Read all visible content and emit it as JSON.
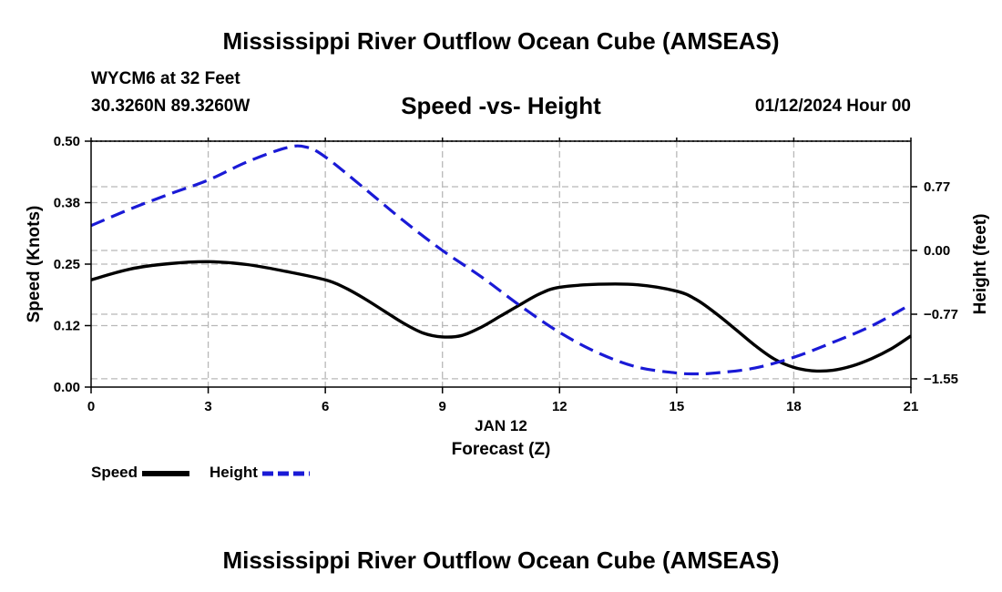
{
  "header": {
    "title": "Mississippi River Outflow Ocean Cube (AMSEAS)",
    "station": "WYCM6 at 32 Feet",
    "coords": "30.3260N  89.3260W",
    "subtitle": "Speed -vs- Height",
    "datetime": "01/12/2024 Hour 00"
  },
  "footer": {
    "title": "Mississippi River Outflow Ocean Cube (AMSEAS)"
  },
  "chart_data": {
    "type": "line",
    "title": "Speed -vs- Height",
    "xlabel": "Forecast (Z)",
    "date_label": "JAN 12",
    "ylabel": "Speed (Knots)",
    "y2label": "Height (feet)",
    "xlim": [
      0,
      21
    ],
    "ylim": [
      0,
      0.5
    ],
    "y2lim": [
      -1.65,
      1.32
    ],
    "grid": true,
    "x_ticks": [
      0,
      3,
      6,
      9,
      12,
      15,
      18,
      21
    ],
    "x_tick_labels": [
      "0",
      "3",
      "6",
      "9",
      "12",
      "15",
      "18",
      "21"
    ],
    "y_ticks": [
      0.0,
      0.125,
      0.25,
      0.375,
      0.5
    ],
    "y_tick_labels": [
      "0.00",
      "0.12",
      "0.25",
      "0.38",
      "0.50"
    ],
    "y2_ticks": [
      -1.55,
      -0.77,
      0.0,
      0.77
    ],
    "y2_tick_labels": [
      "−1.55",
      "−0.77",
      "0.00",
      "0.77"
    ],
    "legend": {
      "position": "bottom-left",
      "entries": [
        {
          "label": "Speed",
          "color": "#000000",
          "dash": "solid"
        },
        {
          "label": "Height",
          "color": "#1a1ad6",
          "dash": "dashed"
        }
      ]
    },
    "series": [
      {
        "name": "Speed",
        "axis": "left",
        "color": "#000000",
        "x": [
          0,
          1,
          2,
          3,
          4,
          5,
          6,
          6.5,
          7,
          7.5,
          8,
          8.5,
          9,
          9.5,
          10,
          10.5,
          11,
          11.5,
          12,
          13,
          14,
          15,
          15.5,
          16,
          16.5,
          17,
          17.5,
          18,
          18.5,
          19,
          19.5,
          20,
          20.5,
          21
        ],
        "values": [
          0.218,
          0.24,
          0.251,
          0.255,
          0.249,
          0.235,
          0.218,
          0.202,
          0.18,
          0.155,
          0.13,
          0.11,
          0.102,
          0.105,
          0.122,
          0.145,
          0.168,
          0.19,
          0.203,
          0.209,
          0.208,
          0.195,
          0.178,
          0.15,
          0.118,
          0.085,
          0.057,
          0.04,
          0.033,
          0.034,
          0.043,
          0.058,
          0.078,
          0.104
        ]
      },
      {
        "name": "Height",
        "axis": "right",
        "color": "#1a1ad6",
        "x": [
          0,
          1,
          2,
          3,
          4,
          5,
          5.5,
          6,
          7,
          8,
          9,
          10,
          11,
          12,
          13,
          14,
          15,
          15.5,
          16,
          17,
          18,
          19,
          20,
          21
        ],
        "values": [
          0.3,
          0.5,
          0.68,
          0.85,
          1.07,
          1.24,
          1.25,
          1.13,
          0.75,
          0.36,
          0.0,
          -0.32,
          -0.67,
          -0.99,
          -1.24,
          -1.41,
          -1.48,
          -1.49,
          -1.48,
          -1.42,
          -1.29,
          -1.11,
          -0.91,
          -0.65
        ]
      }
    ]
  }
}
